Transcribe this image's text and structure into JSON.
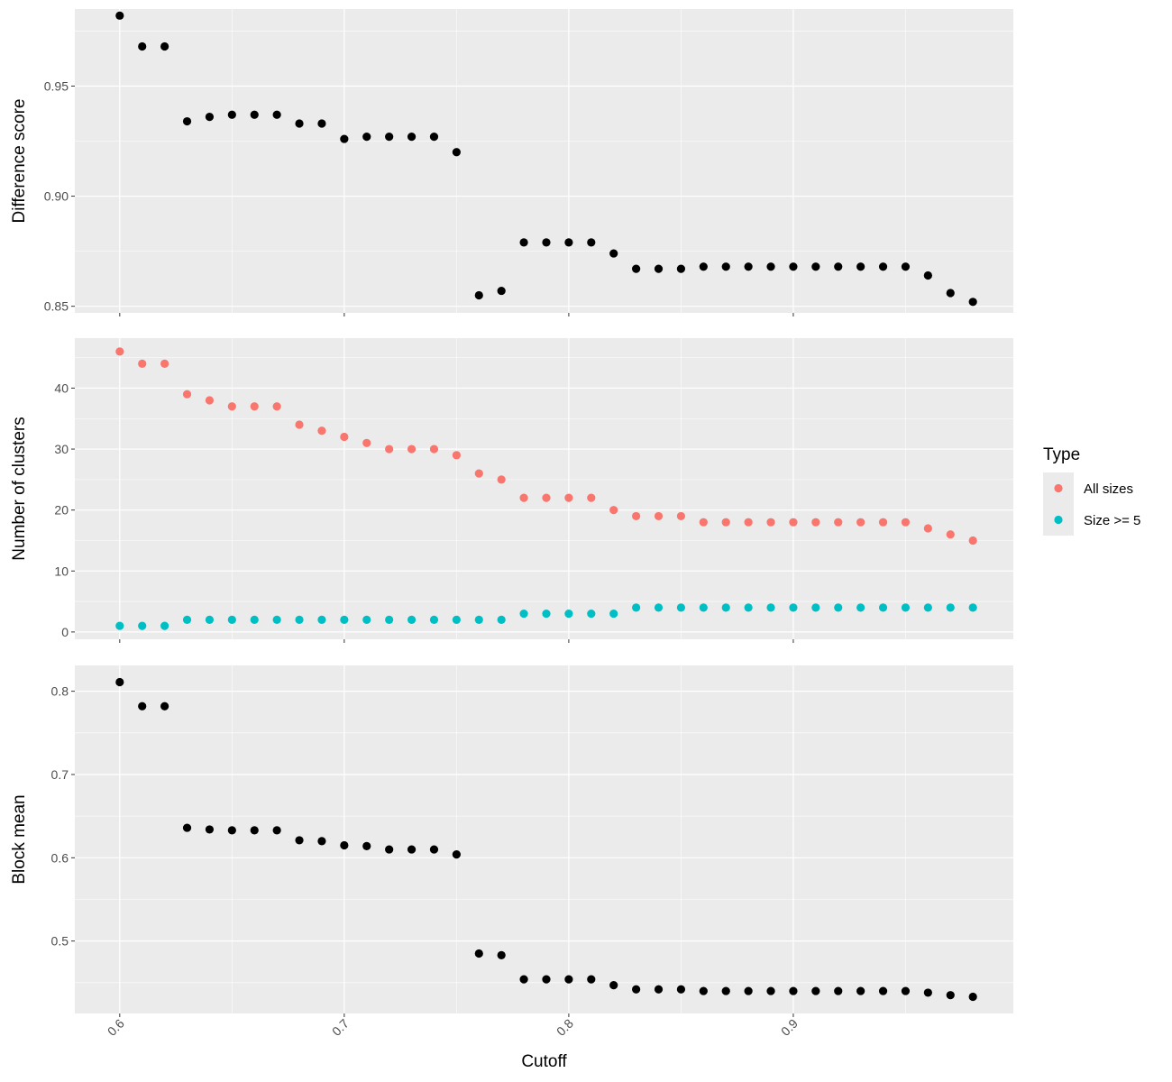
{
  "chart_data": [
    {
      "type": "scatter",
      "ylabel": "Difference score",
      "xlim": [
        0.58,
        0.998
      ],
      "ylim": [
        0.847,
        0.985
      ],
      "yticks": [
        0.85,
        0.9,
        0.95
      ],
      "ytick_labels": [
        "0.85",
        "0.90",
        "0.95"
      ],
      "x": [
        0.6,
        0.61,
        0.62,
        0.63,
        0.64,
        0.65,
        0.66,
        0.67,
        0.68,
        0.69,
        0.7,
        0.71,
        0.72,
        0.73,
        0.74,
        0.75,
        0.76,
        0.77,
        0.78,
        0.79,
        0.8,
        0.81,
        0.82,
        0.83,
        0.84,
        0.85,
        0.86,
        0.87,
        0.88,
        0.89,
        0.9,
        0.91,
        0.92,
        0.93,
        0.94,
        0.95,
        0.96,
        0.97,
        0.98
      ],
      "series": [
        {
          "color": "#000000",
          "values": [
            0.982,
            0.968,
            0.968,
            0.934,
            0.936,
            0.937,
            0.937,
            0.937,
            0.933,
            0.933,
            0.926,
            0.927,
            0.927,
            0.927,
            0.927,
            0.92,
            0.855,
            0.857,
            0.879,
            0.879,
            0.879,
            0.879,
            0.874,
            0.867,
            0.867,
            0.867,
            0.868,
            0.868,
            0.868,
            0.868,
            0.868,
            0.868,
            0.868,
            0.868,
            0.868,
            0.868,
            0.864,
            0.856,
            0.852
          ]
        }
      ]
    },
    {
      "type": "scatter",
      "ylabel": "Number of clusters",
      "xlim": [
        0.58,
        0.998
      ],
      "ylim": [
        -1.2,
        48.2
      ],
      "yticks": [
        0,
        10,
        20,
        30,
        40
      ],
      "ytick_labels": [
        "0",
        "10",
        "20",
        "30",
        "40"
      ],
      "x": [
        0.6,
        0.61,
        0.62,
        0.63,
        0.64,
        0.65,
        0.66,
        0.67,
        0.68,
        0.69,
        0.7,
        0.71,
        0.72,
        0.73,
        0.74,
        0.75,
        0.76,
        0.77,
        0.78,
        0.79,
        0.8,
        0.81,
        0.82,
        0.83,
        0.84,
        0.85,
        0.86,
        0.87,
        0.88,
        0.89,
        0.9,
        0.91,
        0.92,
        0.93,
        0.94,
        0.95,
        0.96,
        0.97,
        0.98
      ],
      "series": [
        {
          "name": "All sizes",
          "color": "#F8766D",
          "values": [
            46,
            44,
            44,
            39,
            38,
            37,
            37,
            37,
            34,
            33,
            32,
            31,
            30,
            30,
            30,
            29,
            26,
            25,
            22,
            22,
            22,
            22,
            20,
            19,
            19,
            19,
            18,
            18,
            18,
            18,
            18,
            18,
            18,
            18,
            18,
            18,
            17,
            16,
            15
          ]
        },
        {
          "name": "Size >= 5",
          "color": "#00BFC4",
          "values": [
            1,
            1,
            1,
            2,
            2,
            2,
            2,
            2,
            2,
            2,
            2,
            2,
            2,
            2,
            2,
            2,
            2,
            2,
            3,
            3,
            3,
            3,
            3,
            4,
            4,
            4,
            4,
            4,
            4,
            4,
            4,
            4,
            4,
            4,
            4,
            4,
            4,
            4,
            4
          ]
        }
      ],
      "legend": {
        "title": "Type",
        "position": "right"
      }
    },
    {
      "type": "scatter",
      "ylabel": "Block mean",
      "xlabel": "Cutoff",
      "xlim": [
        0.58,
        0.998
      ],
      "ylim": [
        0.413,
        0.831
      ],
      "yticks": [
        0.5,
        0.6,
        0.7,
        0.8
      ],
      "ytick_labels": [
        "0.5",
        "0.6",
        "0.7",
        "0.8"
      ],
      "xticks": [
        0.6,
        0.7,
        0.8,
        0.9
      ],
      "xtick_labels": [
        "0.6",
        "0.7",
        "0.8",
        "0.9"
      ],
      "x": [
        0.6,
        0.61,
        0.62,
        0.63,
        0.64,
        0.65,
        0.66,
        0.67,
        0.68,
        0.69,
        0.7,
        0.71,
        0.72,
        0.73,
        0.74,
        0.75,
        0.76,
        0.77,
        0.78,
        0.79,
        0.8,
        0.81,
        0.82,
        0.83,
        0.84,
        0.85,
        0.86,
        0.87,
        0.88,
        0.89,
        0.9,
        0.91,
        0.92,
        0.93,
        0.94,
        0.95,
        0.96,
        0.97,
        0.98
      ],
      "series": [
        {
          "color": "#000000",
          "values": [
            0.811,
            0.782,
            0.782,
            0.636,
            0.634,
            0.633,
            0.633,
            0.633,
            0.621,
            0.62,
            0.615,
            0.614,
            0.61,
            0.61,
            0.61,
            0.604,
            0.485,
            0.483,
            0.454,
            0.454,
            0.454,
            0.454,
            0.447,
            0.442,
            0.442,
            0.442,
            0.44,
            0.44,
            0.44,
            0.44,
            0.44,
            0.44,
            0.44,
            0.44,
            0.44,
            0.44,
            0.438,
            0.435,
            0.433
          ]
        }
      ]
    }
  ],
  "style": {
    "panel_bg": "#EBEBEB",
    "grid_major": "#FFFFFF",
    "tick_color": "#333333",
    "legend_key_bg": "#EBEBEB"
  }
}
